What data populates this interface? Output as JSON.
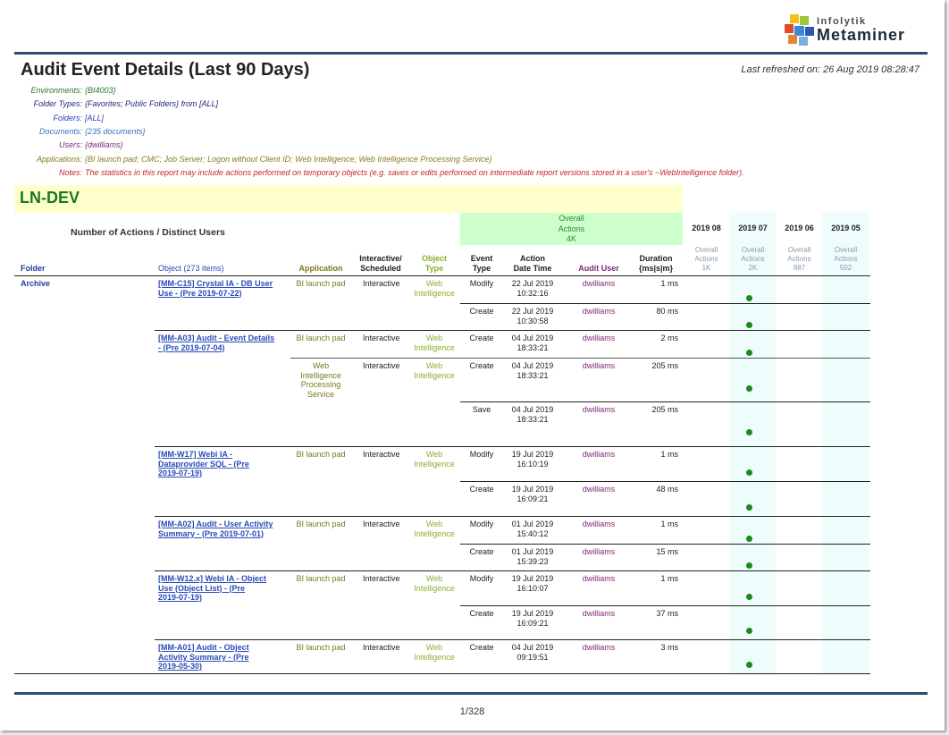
{
  "logo": {
    "line1": "Infolytik",
    "line2": "Metaminer"
  },
  "report": {
    "title": "Audit Event Details (Last 90 Days)",
    "last_refreshed": "Last refreshed on: 26 Aug 2019 08:28:47"
  },
  "params": [
    {
      "key": "Environments:",
      "value": "{BI4003}",
      "color": "#2a7a2a"
    },
    {
      "key": "Folder Types:",
      "value": "{Favorites; Public Folders} from [ALL]",
      "color": "#1f2a7a"
    },
    {
      "key": "Folders:",
      "value": "[ALL]",
      "color": "#2a3fb0"
    },
    {
      "key": "Documents:",
      "value": "{235 documents}",
      "color": "#3a6fc0"
    },
    {
      "key": "Users:",
      "value": "{dwilliams}",
      "color": "#7a2a7a"
    },
    {
      "key": "Applications:",
      "value": "{BI launch pad; CMC; Job Server; Logon without Client ID; Web Intelligence; Web Intelligence Processing Service}",
      "color": "#8a7a1a"
    },
    {
      "key": "Notes:",
      "value": "The statistics in this report may include actions performed on temporary objects (e.g. saves or edits performed on intermediate report versions stored in a user's ~WebIntelligence folder).",
      "color": "#cc2222"
    }
  ],
  "environment": "LN-DEV",
  "header": {
    "num_actions": "Number of Actions / Distinct Users",
    "overall_l1": "Overall",
    "overall_l2": "Actions",
    "overall_l3": "4K",
    "folder": "Folder",
    "object": "Object (273 items)",
    "application": "Application",
    "interactive_l1": "Interactive/",
    "interactive_l2": "Scheduled",
    "object_type_l1": "Object",
    "object_type_l2": "Type",
    "event_type_l1": "Event",
    "event_type_l2": "Type",
    "action_dt_l1": "Action",
    "action_dt_l2": "Date Time",
    "audit_user": "Audit User",
    "duration_l1": "Duration",
    "duration_l2": "{ms|s|m}"
  },
  "months": [
    {
      "label": "2019 08",
      "sub1": "Overall",
      "sub2": "Actions",
      "sub3": "1K"
    },
    {
      "label": "2019 07",
      "sub1": "Overall",
      "sub2": "Actions",
      "sub3": "2K"
    },
    {
      "label": "2019 06",
      "sub1": "Overall",
      "sub2": "Actions",
      "sub3": "887"
    },
    {
      "label": "2019 05",
      "sub1": "Overall",
      "sub2": "Actions",
      "sub3": "502"
    }
  ],
  "folder": "Archive",
  "rows": [
    {
      "object_l1": "[MM-C15] Crystal IA - DB User",
      "object_l2": "Use - (Pre 2019-07-22)",
      "object_l3": "",
      "app_l1": "BI launch pad",
      "app_l2": "",
      "app_l3": "",
      "app_l4": "",
      "interactive": "Interactive",
      "otype_l1": "Web",
      "otype_l2": "Intelligence",
      "event": "Modify",
      "date": "22 Jul 2019",
      "time": "10:32:16",
      "user": "dwilliams",
      "duration": "1 ms"
    },
    {
      "object_l1": "",
      "object_l2": "",
      "object_l3": "",
      "app_l1": "",
      "app_l2": "",
      "app_l3": "",
      "app_l4": "",
      "interactive": "",
      "otype_l1": "",
      "otype_l2": "",
      "event": "Create",
      "date": "22 Jul 2019",
      "time": "10:30:58",
      "user": "dwilliams",
      "duration": "80 ms"
    },
    {
      "object_l1": "[MM-A03] Audit - Event Details",
      "object_l2": "- (Pre 2019-07-04)",
      "object_l3": "",
      "app_l1": "BI launch pad",
      "app_l2": "",
      "app_l3": "",
      "app_l4": "",
      "interactive": "Interactive",
      "otype_l1": "Web",
      "otype_l2": "Intelligence",
      "event": "Create",
      "date": "04 Jul 2019",
      "time": "18:33:21",
      "user": "dwilliams",
      "duration": "2 ms"
    },
    {
      "object_l1": "",
      "object_l2": "",
      "object_l3": "",
      "app_l1": "Web",
      "app_l2": "Intelligence",
      "app_l3": "Processing",
      "app_l4": "Service",
      "interactive": "Interactive",
      "otype_l1": "Web",
      "otype_l2": "Intelligence",
      "event": "Create",
      "date": "04 Jul 2019",
      "time": "18:33:21",
      "user": "dwilliams",
      "duration": "205 ms"
    },
    {
      "object_l1": "",
      "object_l2": "",
      "object_l3": "",
      "app_l1": "",
      "app_l2": "",
      "app_l3": "",
      "app_l4": "",
      "interactive": "",
      "otype_l1": "",
      "otype_l2": "",
      "event": "Save",
      "date": "04 Jul 2019",
      "time": "18:33:21",
      "user": "dwilliams",
      "duration": "205 ms"
    },
    {
      "object_l1": "[MM-W17] Webi IA -",
      "object_l2": "Dataprovider SQL - (Pre",
      "object_l3": "2019-07-19)",
      "app_l1": "BI launch pad",
      "app_l2": "",
      "app_l3": "",
      "app_l4": "",
      "interactive": "Interactive",
      "otype_l1": "Web",
      "otype_l2": "Intelligence",
      "event": "Modify",
      "date": "19 Jul 2019",
      "time": "16:10:19",
      "user": "dwilliams",
      "duration": "1 ms"
    },
    {
      "object_l1": "",
      "object_l2": "",
      "object_l3": "",
      "app_l1": "",
      "app_l2": "",
      "app_l3": "",
      "app_l4": "",
      "interactive": "",
      "otype_l1": "",
      "otype_l2": "",
      "event": "Create",
      "date": "19 Jul 2019",
      "time": "16:09:21",
      "user": "dwilliams",
      "duration": "48 ms"
    },
    {
      "object_l1": "[MM-A02] Audit - User Activity",
      "object_l2": "Summary - (Pre 2019-07-01)",
      "object_l3": "",
      "app_l1": "BI launch pad",
      "app_l2": "",
      "app_l3": "",
      "app_l4": "",
      "interactive": "Interactive",
      "otype_l1": "Web",
      "otype_l2": "Intelligence",
      "event": "Modify",
      "date": "01 Jul 2019",
      "time": "15:40:12",
      "user": "dwilliams",
      "duration": "1 ms"
    },
    {
      "object_l1": "",
      "object_l2": "",
      "object_l3": "",
      "app_l1": "",
      "app_l2": "",
      "app_l3": "",
      "app_l4": "",
      "interactive": "",
      "otype_l1": "",
      "otype_l2": "",
      "event": "Create",
      "date": "01 Jul 2019",
      "time": "15:39:23",
      "user": "dwilliams",
      "duration": "15 ms"
    },
    {
      "object_l1": "[MM-W12.x] Webi IA - Object",
      "object_l2": "Use (Object List) - (Pre",
      "object_l3": "2019-07-19)",
      "app_l1": "BI launch pad",
      "app_l2": "",
      "app_l3": "",
      "app_l4": "",
      "interactive": "Interactive",
      "otype_l1": "Web",
      "otype_l2": "Intelligence",
      "event": "Modify",
      "date": "19 Jul 2019",
      "time": "16:10:07",
      "user": "dwilliams",
      "duration": "1 ms"
    },
    {
      "object_l1": "",
      "object_l2": "",
      "object_l3": "",
      "app_l1": "",
      "app_l2": "",
      "app_l3": "",
      "app_l4": "",
      "interactive": "",
      "otype_l1": "",
      "otype_l2": "",
      "event": "Create",
      "date": "19 Jul 2019",
      "time": "16:09:21",
      "user": "dwilliams",
      "duration": "37 ms"
    },
    {
      "object_l1": "[MM-A01] Audit - Object",
      "object_l2": "Activity Summary - (Pre",
      "object_l3": "2019-05-30)",
      "app_l1": "BI launch pad",
      "app_l2": "",
      "app_l3": "",
      "app_l4": "",
      "interactive": "Interactive",
      "otype_l1": "Web",
      "otype_l2": "Intelligence",
      "event": "Create",
      "date": "04 Jul 2019",
      "time": "09:19:51",
      "user": "dwilliams",
      "duration": "3 ms"
    }
  ],
  "month_dot_column": "2019 07",
  "colors": {
    "dot": "#1a8a1a",
    "rule": "#2f4b6e",
    "env_bg": "#ffffcc",
    "overall_bg": "#ccffcc"
  },
  "footer": {
    "page": "1/328"
  }
}
